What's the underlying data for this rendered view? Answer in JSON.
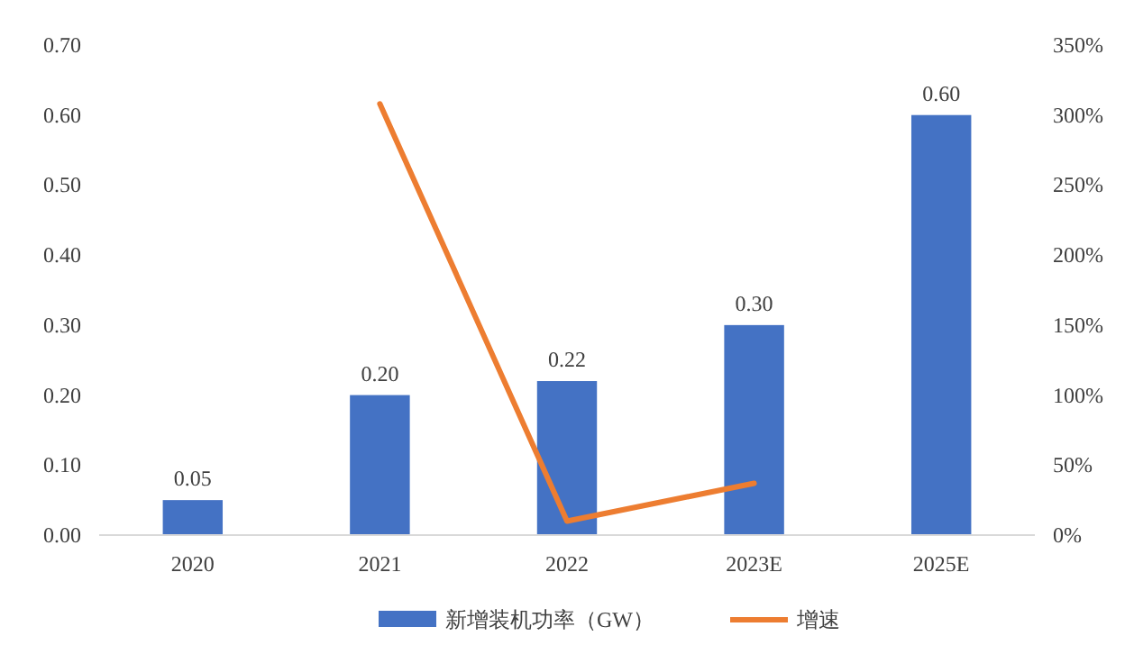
{
  "chart_data": {
    "type": "bar",
    "categories": [
      "2020",
      "2021",
      "2022",
      "2023E",
      "2025E"
    ],
    "series": [
      {
        "name": "新增装机功率（GW）",
        "color": "#4472c4",
        "values": [
          0.05,
          0.2,
          0.22,
          0.3,
          0.6
        ]
      },
      {
        "name": "增速",
        "type": "line",
        "axis": "y2",
        "color": "#ed7d31",
        "values": [
          null,
          308,
          10,
          37,
          null
        ]
      }
    ],
    "value_labels": [
      "0.05",
      "0.20",
      "0.22",
      "0.30",
      "0.60"
    ],
    "ylim": [
      0,
      0.7
    ],
    "yticks": [
      {
        "value": 0,
        "label": "0.00"
      },
      {
        "value": 0.1,
        "label": "0.10"
      },
      {
        "value": 0.2,
        "label": "0.20"
      },
      {
        "value": 0.3,
        "label": "0.30"
      },
      {
        "value": 0.4,
        "label": "0.40"
      },
      {
        "value": 0.5,
        "label": "0.50"
      },
      {
        "value": 0.6,
        "label": "0.60"
      },
      {
        "value": 0.7,
        "label": "0.70"
      }
    ],
    "y2lim": [
      0,
      350
    ],
    "y2ticks": [
      {
        "value": 0,
        "label": "0%"
      },
      {
        "value": 50,
        "label": "50%"
      },
      {
        "value": 100,
        "label": "100%"
      },
      {
        "value": 150,
        "label": "150%"
      },
      {
        "value": 200,
        "label": "200%"
      },
      {
        "value": 250,
        "label": "250%"
      },
      {
        "value": 300,
        "label": "300%"
      },
      {
        "value": 350,
        "label": "350%"
      }
    ],
    "legend": "bottom",
    "line_style": "solid",
    "marker": "none"
  }
}
